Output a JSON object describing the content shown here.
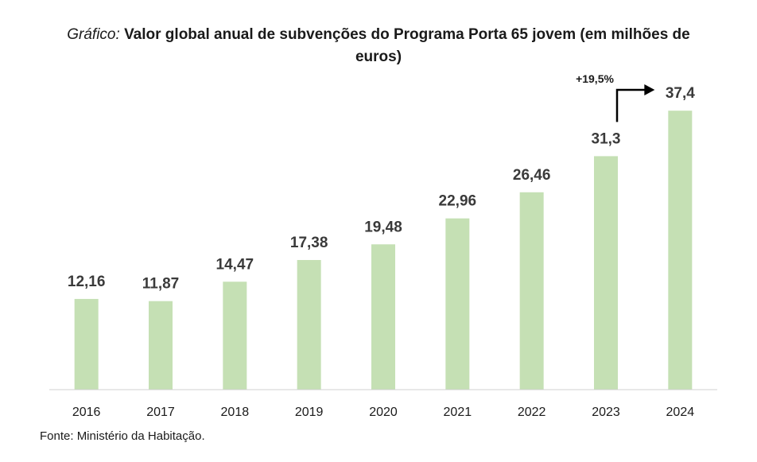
{
  "chart_data": {
    "type": "bar",
    "title_prefix": "Gráfico:",
    "title": "Valor global anual de subvenções do Programa Porta 65 jovem (em milhões de euros)",
    "categories": [
      "2016",
      "2017",
      "2018",
      "2019",
      "2020",
      "2021",
      "2022",
      "2023",
      "2024"
    ],
    "values": [
      12.16,
      11.87,
      14.47,
      17.38,
      19.48,
      22.96,
      26.46,
      31.3,
      37.4
    ],
    "value_labels": [
      "12,16",
      "11,87",
      "14,47",
      "17,38",
      "19,48",
      "22,96",
      "26,46",
      "31,3",
      "37,4"
    ],
    "bar_color": "#c5e0b4",
    "ylim": [
      0,
      40
    ],
    "xlabel": "",
    "ylabel": "",
    "grid": false,
    "annotation": {
      "text": "+19,5%",
      "from_category": "2023",
      "to_category": "2024"
    }
  },
  "source": "Fonte: Ministério da Habitação."
}
